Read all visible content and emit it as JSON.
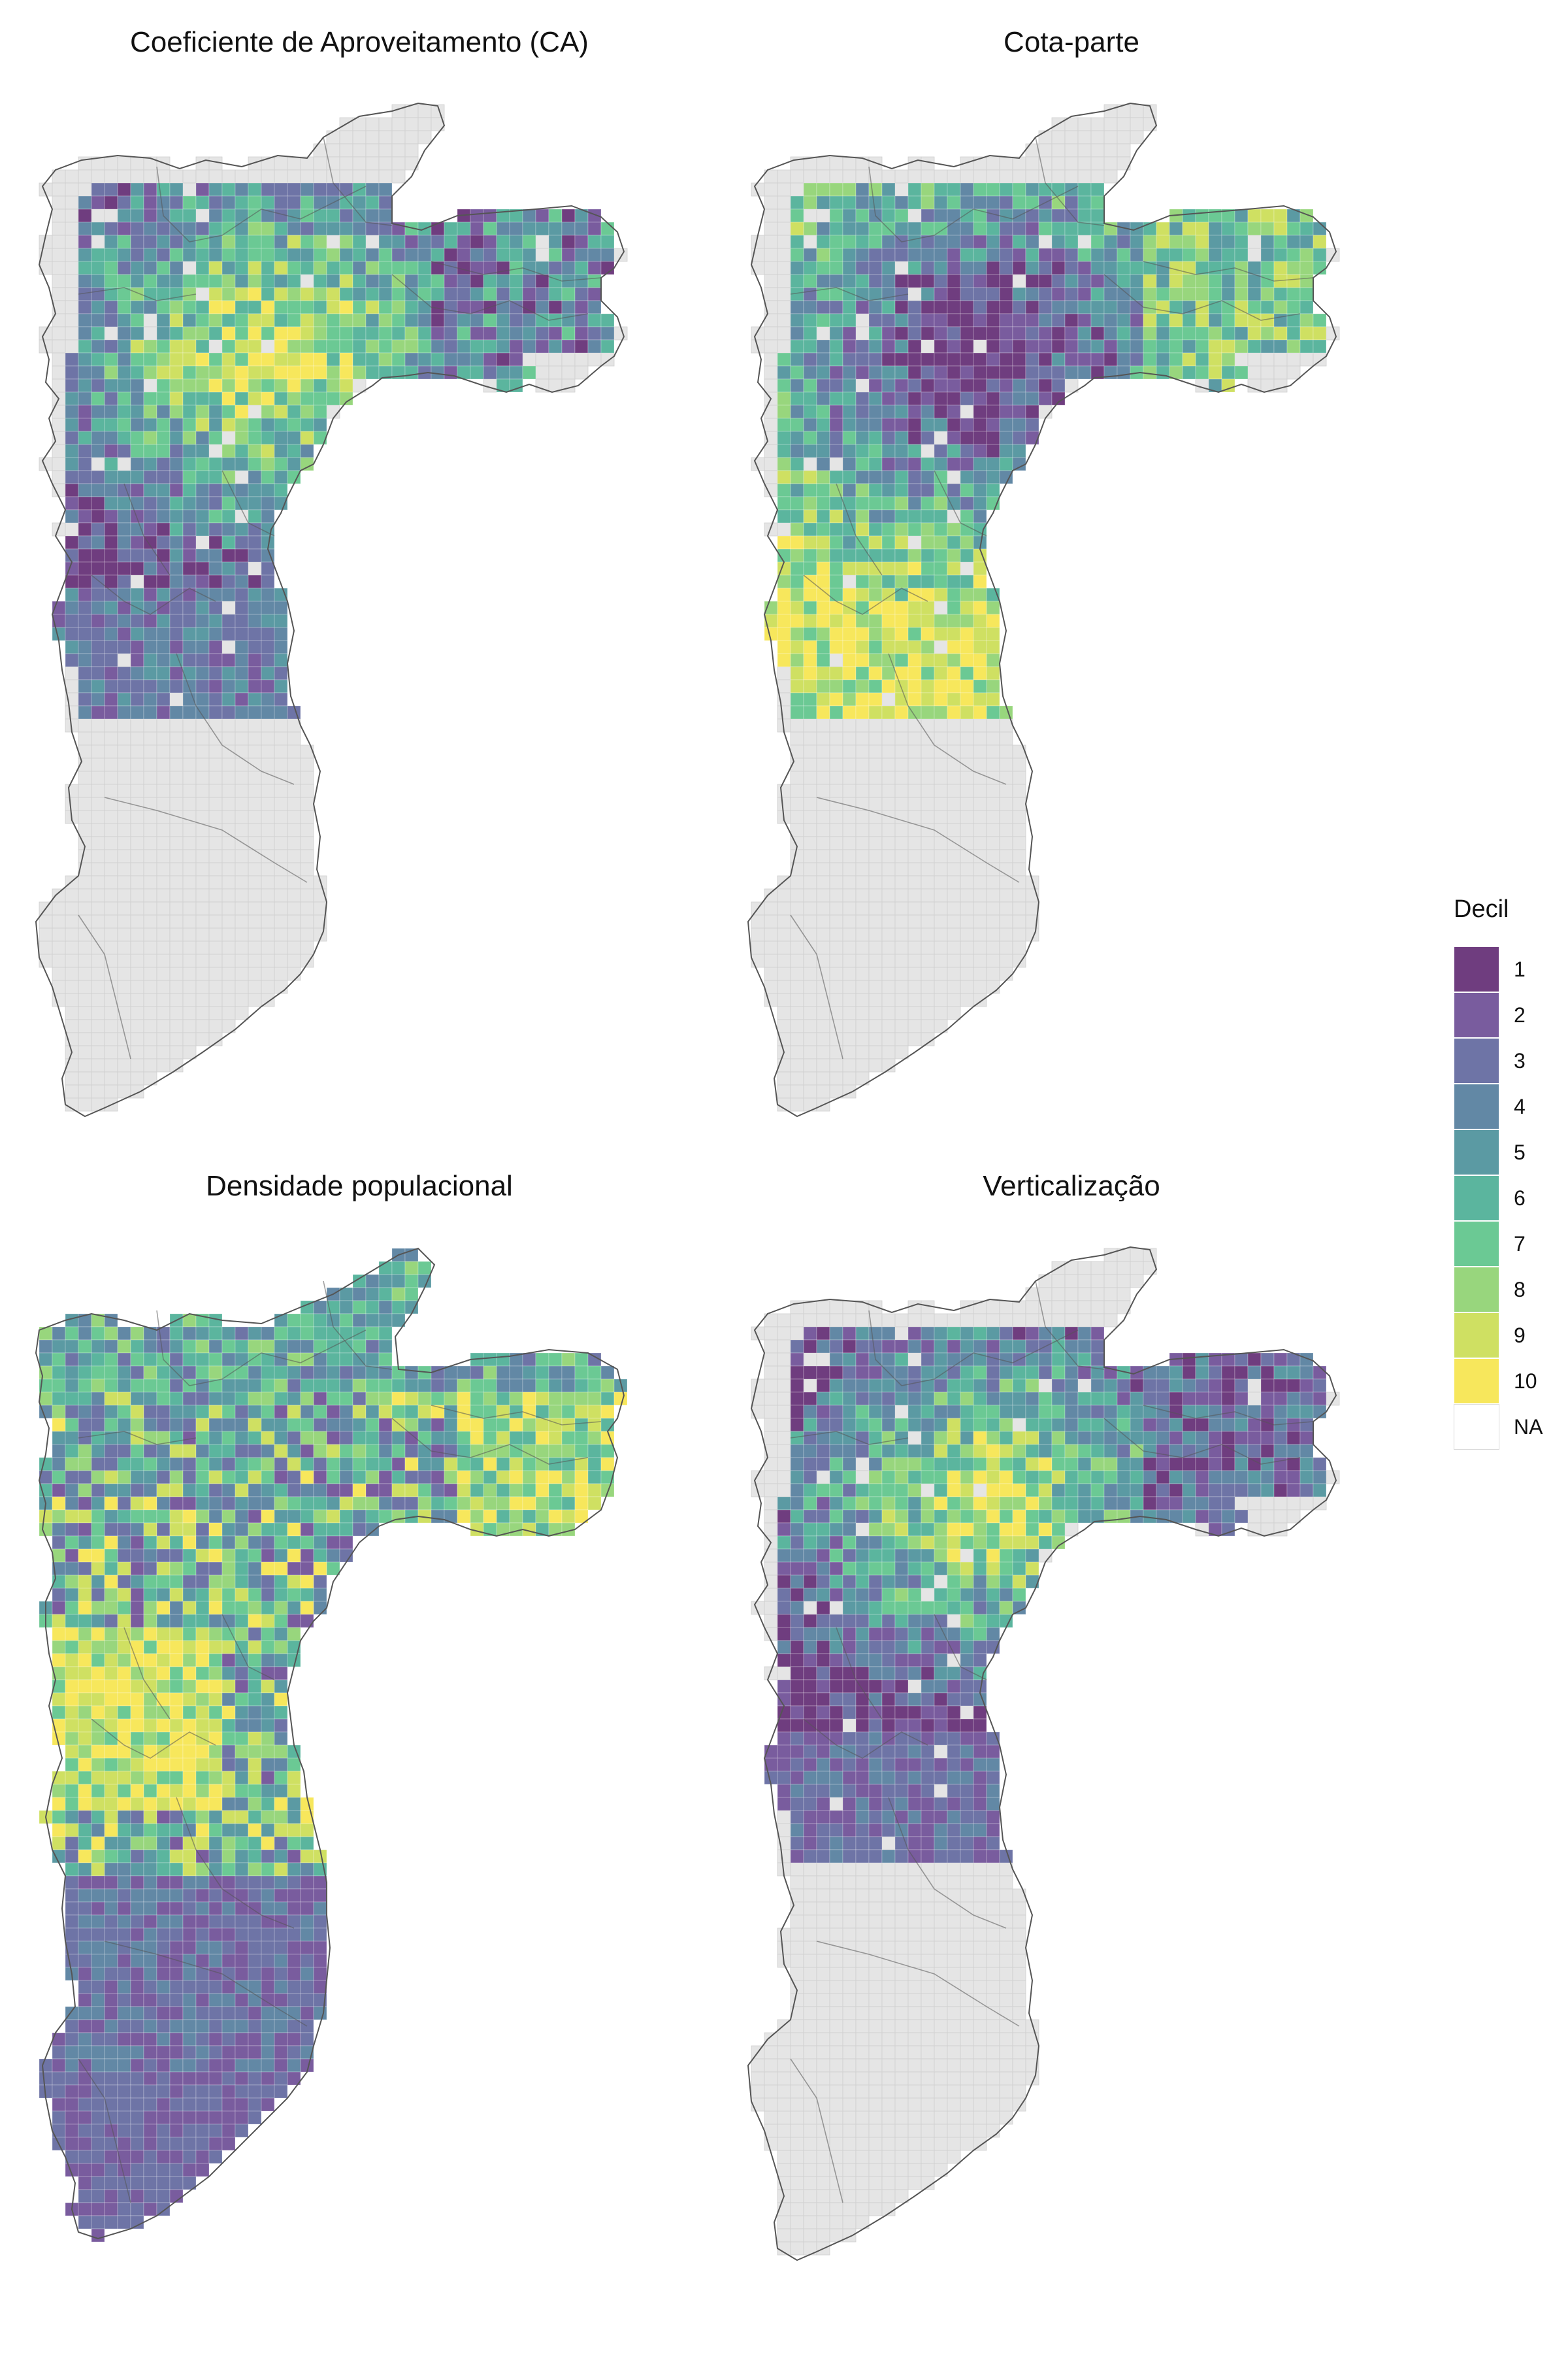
{
  "panels": [
    {
      "id": "ca",
      "title": "Coeficiente de Aproveitamento (CA)",
      "shape": "a",
      "pattern": "ca"
    },
    {
      "id": "cota",
      "title": "Cota-parte",
      "shape": "a",
      "pattern": "cota"
    },
    {
      "id": "dens",
      "title": "Densidade populacional",
      "shape": "b",
      "pattern": "dens"
    },
    {
      "id": "vert",
      "title": "Verticalização",
      "shape": "a",
      "pattern": "vert"
    }
  ],
  "legend": {
    "title": "Decil",
    "items": [
      {
        "label": "1",
        "color": "#6f3d7f"
      },
      {
        "label": "2",
        "color": "#795c9e"
      },
      {
        "label": "3",
        "color": "#6e74a6"
      },
      {
        "label": "4",
        "color": "#6288a5"
      },
      {
        "label": "5",
        "color": "#5b9aa3"
      },
      {
        "label": "6",
        "color": "#5bb59e"
      },
      {
        "label": "7",
        "color": "#6bc994"
      },
      {
        "label": "8",
        "color": "#98d67d"
      },
      {
        "label": "9",
        "color": "#cfe062"
      },
      {
        "label": "10",
        "color": "#f7e75c"
      },
      {
        "label": "NA",
        "color": "#ffffff"
      }
    ]
  },
  "colors": {
    "background_fill": "#e5e5e5",
    "grid_line": "#cfcfcf",
    "border_line": "#555555"
  }
}
